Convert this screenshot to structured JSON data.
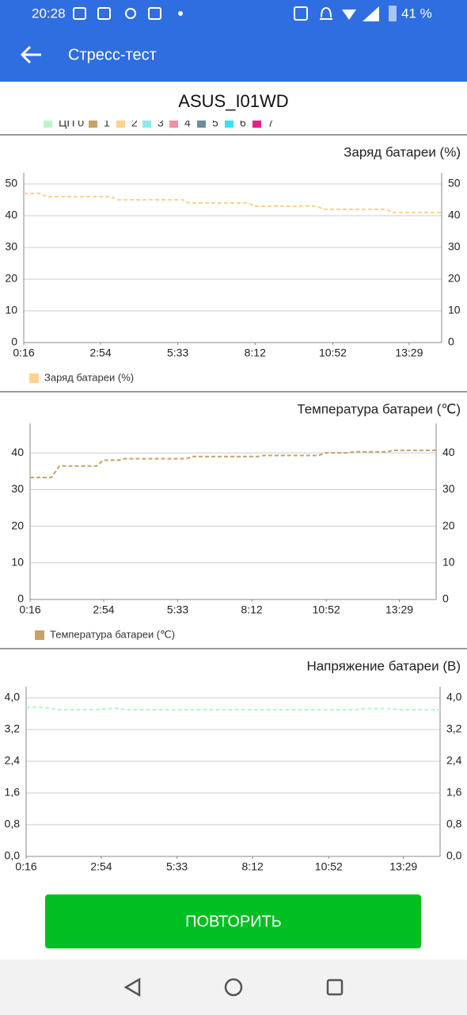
{
  "status_bar": {
    "time": "20:28",
    "battery": "41 %"
  },
  "app_bar": {
    "title": "Стресс-тест"
  },
  "device": "ASUS_I01WD",
  "core_legend": [
    {
      "name": "ЦП 0",
      "color": "#b9f6ca"
    },
    {
      "name": "1",
      "color": "#c8a165"
    },
    {
      "name": "2",
      "color": "#fdd28e"
    },
    {
      "name": "3",
      "color": "#8ee8f0"
    },
    {
      "name": "4",
      "color": "#f48fa0"
    },
    {
      "name": "5",
      "color": "#6b8e9e"
    },
    {
      "name": "6",
      "color": "#3de0f0"
    },
    {
      "name": "7",
      "color": "#e91e8c"
    }
  ],
  "chart_data": [
    {
      "type": "line",
      "title": "Заряд батареи (%)",
      "xlim": [
        16,
        876
      ],
      "xticks": [
        {
          "value": 16,
          "label": "0:16"
        },
        {
          "value": 174,
          "label": "2:54"
        },
        {
          "value": 333,
          "label": "5:33"
        },
        {
          "value": 492,
          "label": "8:12"
        },
        {
          "value": 652,
          "label": "10:52"
        },
        {
          "value": 809,
          "label": "13:29"
        }
      ],
      "ylim": [
        0,
        50
      ],
      "yticks": [
        0,
        10,
        20,
        30,
        40,
        50
      ],
      "grid": true,
      "series": [
        {
          "name": "Заряд батареи (%)",
          "color": "#fdd28e",
          "x": [
            16,
            50,
            62,
            196,
            208,
            343,
            355,
            478,
            490,
            620,
            632,
            762,
            774,
            876
          ],
          "values": [
            47,
            47,
            46,
            46,
            45,
            45,
            44,
            44,
            43,
            43,
            42,
            42,
            41,
            41
          ]
        }
      ]
    },
    {
      "type": "line",
      "title": "Температура батареи (℃)",
      "xlim": [
        16,
        888
      ],
      "xticks": [
        {
          "value": 16,
          "label": "0:16"
        },
        {
          "value": 174,
          "label": "2:54"
        },
        {
          "value": 333,
          "label": "5:33"
        },
        {
          "value": 492,
          "label": "8:12"
        },
        {
          "value": 652,
          "label": "10:52"
        },
        {
          "value": 809,
          "label": "13:29"
        }
      ],
      "ylim": [
        0,
        45
      ],
      "yticks": [
        0,
        10,
        20,
        30,
        40
      ],
      "grid": true,
      "series": [
        {
          "name": "Температура батареи (℃)",
          "color": "#c8a165",
          "x": [
            16,
            62,
            79,
            159,
            173,
            206,
            219,
            352,
            365,
            505,
            518,
            636,
            650,
            700,
            712,
            784,
            796,
            888
          ],
          "values": [
            33.3,
            33.3,
            36.4,
            36.4,
            38,
            38,
            38.4,
            38.4,
            39,
            39,
            39.3,
            39.3,
            40,
            40,
            40.3,
            40.3,
            40.7,
            40.7
          ]
        }
      ]
    },
    {
      "type": "line",
      "title": "Напряжение батареи (В)",
      "xlim": [
        16,
        886
      ],
      "xticks": [
        {
          "value": 16,
          "label": "0:16"
        },
        {
          "value": 174,
          "label": "2:54"
        },
        {
          "value": 333,
          "label": "5:33"
        },
        {
          "value": 492,
          "label": "8:12"
        },
        {
          "value": 652,
          "label": "10:52"
        },
        {
          "value": 809,
          "label": "13:29"
        }
      ],
      "ylim": [
        0,
        4.0
      ],
      "yticks": [
        {
          "value": 0,
          "label": "0,0"
        },
        {
          "value": 0.8,
          "label": "0,8"
        },
        {
          "value": 1.6,
          "label": "1,6"
        },
        {
          "value": 2.4,
          "label": "2,4"
        },
        {
          "value": 3.2,
          "label": "3,2"
        },
        {
          "value": 4.0,
          "label": "4,0"
        }
      ],
      "grid": true,
      "series": [
        {
          "name": "Напряжение батареи (В)",
          "color": "#b9f6ca",
          "x": [
            16,
            53,
            86,
            161,
            202,
            227,
            709,
            730,
            776,
            800,
            886
          ],
          "values": [
            3.76,
            3.76,
            3.7,
            3.7,
            3.74,
            3.7,
            3.7,
            3.73,
            3.73,
            3.7,
            3.7
          ]
        }
      ]
    }
  ],
  "button": "ПОВТОРИТЬ"
}
